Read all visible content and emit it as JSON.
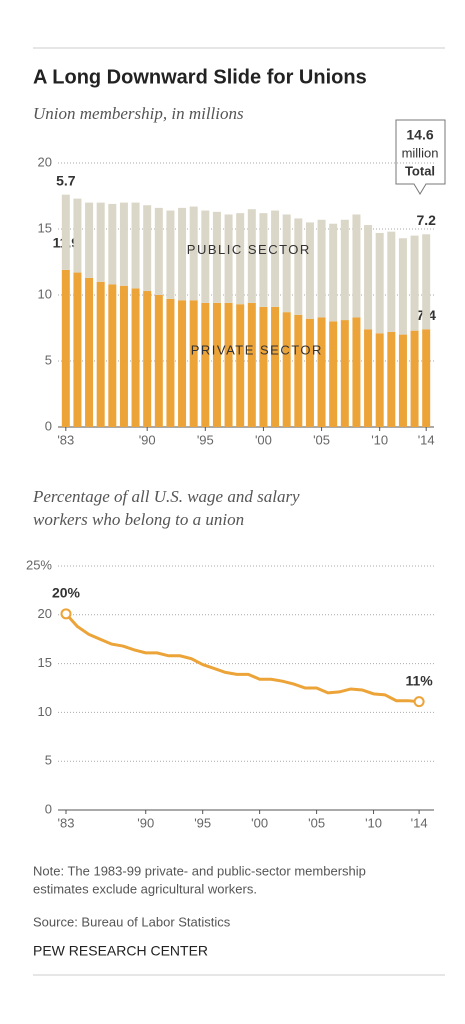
{
  "title": "A Long Downward Slide for Unions",
  "chart_data": [
    {
      "type": "stacked-bar",
      "subtitle": "Union membership, in millions",
      "x": [
        1983,
        1984,
        1985,
        1986,
        1987,
        1988,
        1989,
        1990,
        1991,
        1992,
        1993,
        1994,
        1995,
        1996,
        1997,
        1998,
        1999,
        2000,
        2001,
        2002,
        2003,
        2004,
        2005,
        2006,
        2007,
        2008,
        2009,
        2010,
        2011,
        2012,
        2013,
        2014
      ],
      "series": [
        {
          "name": "PRIVATE SECTOR",
          "color": "#eca338",
          "values": [
            11.9,
            11.7,
            11.3,
            11.0,
            10.8,
            10.7,
            10.5,
            10.3,
            10.0,
            9.7,
            9.6,
            9.6,
            9.4,
            9.4,
            9.4,
            9.3,
            9.4,
            9.1,
            9.1,
            8.7,
            8.5,
            8.2,
            8.3,
            8.0,
            8.1,
            8.3,
            7.4,
            7.1,
            7.2,
            7.0,
            7.3,
            7.4
          ],
          "value_labels": [
            "11.9",
            null,
            null,
            null,
            null,
            null,
            null,
            null,
            null,
            null,
            null,
            null,
            null,
            null,
            null,
            null,
            null,
            null,
            null,
            null,
            null,
            null,
            null,
            null,
            null,
            null,
            null,
            null,
            null,
            null,
            null,
            "7.4"
          ]
        },
        {
          "name": "PUBLIC SECTOR",
          "color": "#dbd7c8",
          "values": [
            5.7,
            5.6,
            5.7,
            6.0,
            6.1,
            6.3,
            6.5,
            6.5,
            6.6,
            6.7,
            7.0,
            7.1,
            7.0,
            6.9,
            6.7,
            6.9,
            7.1,
            7.1,
            7.3,
            7.4,
            7.3,
            7.3,
            7.4,
            7.4,
            7.6,
            7.8,
            7.9,
            7.6,
            7.6,
            7.3,
            7.2,
            7.2
          ],
          "value_labels": [
            "5.7",
            null,
            null,
            null,
            null,
            null,
            null,
            null,
            null,
            null,
            null,
            null,
            null,
            null,
            null,
            null,
            null,
            null,
            null,
            null,
            null,
            null,
            null,
            null,
            null,
            null,
            null,
            null,
            null,
            null,
            null,
            "7.2"
          ]
        }
      ],
      "callout": [
        "14.6",
        "million",
        "Total"
      ],
      "xlim": [
        1982.5,
        2014.5
      ],
      "xticks": [
        {
          "value": 1983,
          "label": "'83"
        },
        {
          "value": 1990,
          "label": "'90"
        },
        {
          "value": 1995,
          "label": "'95"
        },
        {
          "value": 2000,
          "label": "'00"
        },
        {
          "value": 2005,
          "label": "'05"
        },
        {
          "value": 2010,
          "label": "'10"
        },
        {
          "value": 2014,
          "label": "'14"
        }
      ],
      "ylim": [
        0,
        20
      ],
      "yticks": [
        0,
        5,
        10,
        15,
        20
      ],
      "grid": true
    },
    {
      "type": "line",
      "subtitle": [
        "Percentage of all U.S. wage and salary",
        "workers who belong to a union"
      ],
      "x": [
        1983,
        1984,
        1985,
        1986,
        1987,
        1988,
        1989,
        1990,
        1991,
        1992,
        1993,
        1994,
        1995,
        1996,
        1997,
        1998,
        1999,
        2000,
        2001,
        2002,
        2003,
        2004,
        2005,
        2006,
        2007,
        2008,
        2009,
        2010,
        2011,
        2012,
        2013,
        2014
      ],
      "values": [
        20.1,
        18.8,
        18.0,
        17.5,
        17.0,
        16.8,
        16.4,
        16.1,
        16.1,
        15.8,
        15.8,
        15.5,
        14.9,
        14.5,
        14.1,
        13.9,
        13.9,
        13.4,
        13.4,
        13.2,
        12.9,
        12.5,
        12.5,
        12.0,
        12.1,
        12.4,
        12.3,
        11.9,
        11.8,
        11.2,
        11.2,
        11.1
      ],
      "value_labels": [
        "20%",
        null,
        null,
        null,
        null,
        null,
        null,
        null,
        null,
        null,
        null,
        null,
        null,
        null,
        null,
        null,
        null,
        null,
        null,
        null,
        null,
        null,
        null,
        null,
        null,
        null,
        null,
        null,
        null,
        null,
        null,
        "11%"
      ],
      "color": "#eca338",
      "xlim": [
        1982.5,
        2014.5
      ],
      "xticks": [
        {
          "value": 1983,
          "label": "'83"
        },
        {
          "value": 1990,
          "label": "'90"
        },
        {
          "value": 1995,
          "label": "'95"
        },
        {
          "value": 2000,
          "label": "'00"
        },
        {
          "value": 2005,
          "label": "'05"
        },
        {
          "value": 2010,
          "label": "'10"
        },
        {
          "value": 2014,
          "label": "'14"
        }
      ],
      "ylim": [
        0,
        25
      ],
      "yticks": [
        0,
        5,
        10,
        15,
        20,
        {
          "value": 25,
          "label": "25%"
        }
      ],
      "grid": true
    }
  ],
  "note": [
    "Note: The 1983-99 private- and public-sector membership",
    "estimates exclude agricultural workers."
  ],
  "source": "Source: Bureau of Labor Statistics",
  "brand": "PEW RESEARCH CENTER"
}
